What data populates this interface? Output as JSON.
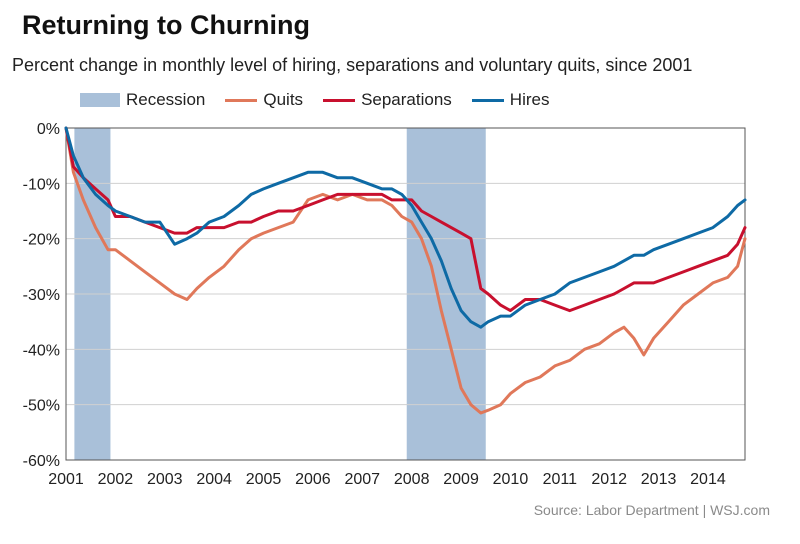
{
  "colors": {
    "recession": "#a9c0d9",
    "quits": "#e0785a",
    "separations": "#c8102e",
    "hires": "#0e6aa5",
    "grid": "#d0d0d0"
  },
  "chart_data": {
    "type": "line",
    "title": "Returning to Churning",
    "subtitle": "Percent change in monthly level of hiring, separations and voluntary quits, since 2001",
    "xlabel": "",
    "ylabel": "",
    "xlim": [
      2001,
      2014.75
    ],
    "ylim": [
      -60,
      0
    ],
    "x_ticks": [
      "2001",
      "2002",
      "2003",
      "2004",
      "2005",
      "2006",
      "2007",
      "2008",
      "2009",
      "2010",
      "2011",
      "2012",
      "2013",
      "2014"
    ],
    "y_ticks": [
      {
        "value": 0,
        "label": "0%"
      },
      {
        "value": -10,
        "label": "-10%"
      },
      {
        "value": -20,
        "label": "-20%"
      },
      {
        "value": -30,
        "label": "-30%"
      },
      {
        "value": -40,
        "label": "-40%"
      },
      {
        "value": -50,
        "label": "-50%"
      },
      {
        "value": -60,
        "label": "-60%"
      }
    ],
    "grid": true,
    "legend_position": "top",
    "legend": [
      "Recession",
      "Quits",
      "Separations",
      "Hires"
    ],
    "recessions": [
      {
        "name": "Recession",
        "start": 2001.17,
        "end": 2001.9
      },
      {
        "name": "Recession",
        "start": 2007.9,
        "end": 2009.5
      }
    ],
    "series": [
      {
        "name": "Quits",
        "x": [
          2001,
          2001.15,
          2001.35,
          2001.6,
          2001.85,
          2002,
          2002.3,
          2002.6,
          2002.9,
          2003.2,
          2003.45,
          2003.65,
          2003.9,
          2004.2,
          2004.5,
          2004.75,
          2005,
          2005.3,
          2005.6,
          2005.9,
          2006.2,
          2006.5,
          2006.8,
          2007.1,
          2007.4,
          2007.6,
          2007.8,
          2008,
          2008.2,
          2008.4,
          2008.6,
          2008.8,
          2009,
          2009.2,
          2009.4,
          2009.55,
          2009.8,
          2010,
          2010.3,
          2010.6,
          2010.9,
          2011.2,
          2011.5,
          2011.8,
          2012.1,
          2012.3,
          2012.5,
          2012.7,
          2012.9,
          2013.2,
          2013.5,
          2013.8,
          2014.1,
          2014.4,
          2014.6,
          2014.75
        ],
        "values": [
          0,
          -8,
          -13,
          -18,
          -22,
          -22,
          -24,
          -26,
          -28,
          -30,
          -31,
          -29,
          -27,
          -25,
          -22,
          -20,
          -19,
          -18,
          -17,
          -13,
          -12,
          -13,
          -12,
          -13,
          -13,
          -14,
          -16,
          -17,
          -20,
          -25,
          -33,
          -40,
          -47,
          -50,
          -51.5,
          -51,
          -50,
          -48,
          -46,
          -45,
          -43,
          -42,
          -40,
          -39,
          -37,
          -36,
          -38,
          -41,
          -38,
          -35,
          -32,
          -30,
          -28,
          -27,
          -25,
          -20
        ]
      },
      {
        "name": "Separations",
        "x": [
          2001,
          2001.15,
          2001.35,
          2001.6,
          2001.85,
          2002,
          2002.3,
          2002.6,
          2002.9,
          2003.2,
          2003.45,
          2003.65,
          2003.9,
          2004.2,
          2004.5,
          2004.75,
          2005,
          2005.3,
          2005.6,
          2005.9,
          2006.2,
          2006.5,
          2006.8,
          2007.1,
          2007.4,
          2007.6,
          2007.8,
          2008,
          2008.2,
          2008.4,
          2008.6,
          2008.8,
          2009,
          2009.2,
          2009.4,
          2009.55,
          2009.8,
          2010,
          2010.3,
          2010.6,
          2010.9,
          2011.2,
          2011.5,
          2011.8,
          2012.1,
          2012.3,
          2012.5,
          2012.7,
          2012.9,
          2013.2,
          2013.5,
          2013.8,
          2014.1,
          2014.4,
          2014.6,
          2014.75
        ],
        "values": [
          0,
          -7,
          -9,
          -11,
          -13,
          -16,
          -16,
          -17,
          -18,
          -19,
          -19,
          -18,
          -18,
          -18,
          -17,
          -17,
          -16,
          -15,
          -15,
          -14,
          -13,
          -12,
          -12,
          -12,
          -12,
          -13,
          -13,
          -13,
          -15,
          -16,
          -17,
          -18,
          -19,
          -20,
          -29,
          -30,
          -32,
          -33,
          -31,
          -31,
          -32,
          -33,
          -32,
          -31,
          -30,
          -29,
          -28,
          -28,
          -28,
          -27,
          -26,
          -25,
          -24,
          -23,
          -21,
          -18
        ]
      },
      {
        "name": "Hires",
        "x": [
          2001,
          2001.15,
          2001.35,
          2001.6,
          2001.85,
          2002,
          2002.3,
          2002.6,
          2002.9,
          2003.2,
          2003.45,
          2003.65,
          2003.9,
          2004.2,
          2004.5,
          2004.75,
          2005,
          2005.3,
          2005.6,
          2005.9,
          2006.2,
          2006.5,
          2006.8,
          2007.1,
          2007.4,
          2007.6,
          2007.8,
          2008,
          2008.2,
          2008.4,
          2008.6,
          2008.8,
          2009,
          2009.2,
          2009.4,
          2009.55,
          2009.8,
          2010,
          2010.3,
          2010.6,
          2010.9,
          2011.2,
          2011.5,
          2011.8,
          2012.1,
          2012.3,
          2012.5,
          2012.7,
          2012.9,
          2013.2,
          2013.5,
          2013.8,
          2014.1,
          2014.4,
          2014.6,
          2014.75
        ],
        "values": [
          0,
          -5,
          -9,
          -12,
          -14,
          -15,
          -16,
          -17,
          -17,
          -21,
          -20,
          -19,
          -17,
          -16,
          -14,
          -12,
          -11,
          -10,
          -9,
          -8,
          -8,
          -9,
          -9,
          -10,
          -11,
          -11,
          -12,
          -14,
          -17,
          -20,
          -24,
          -29,
          -33,
          -35,
          -36,
          -35,
          -34,
          -34,
          -32,
          -31,
          -30,
          -28,
          -27,
          -26,
          -25,
          -24,
          -23,
          -23,
          -22,
          -21,
          -20,
          -19,
          -18,
          -16,
          -14,
          -13
        ]
      }
    ]
  },
  "source": "Source: Labor Department  |  WSJ.com"
}
